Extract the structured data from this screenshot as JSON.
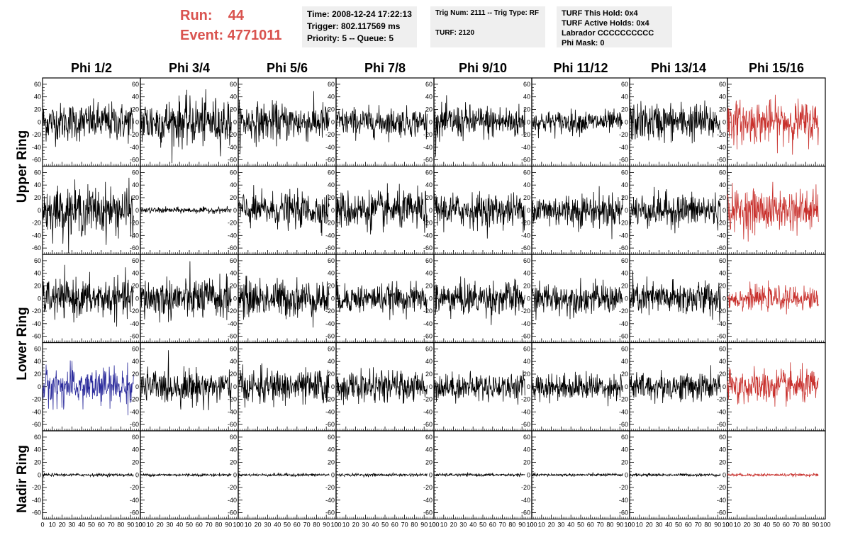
{
  "header": {
    "run_label": "Run:",
    "run_value": "44",
    "event_label": "Event:",
    "event_value": "4771011",
    "box1": {
      "time": "Time: 2008-12-24 17:22:13",
      "trigger": "Trigger: 802.117569 ms",
      "priority": "Priority: 5 -- Queue: 5"
    },
    "box2": {
      "trig_num": "Trig Num: 2111 -- Trig Type: RF",
      "turf": "TURF: 2120"
    },
    "box3": {
      "this_hold": "TURF This Hold: 0x4",
      "active_holds": "TURF Active Holds: 0x4",
      "labrador": "Labrador CCCCCCCCCC",
      "phi_mask": "Phi Mask: 0"
    }
  },
  "columns": [
    "Phi 1/2",
    "Phi 3/4",
    "Phi 5/6",
    "Phi 7/8",
    "Phi 9/10",
    "Phi 11/12",
    "Phi 13/14",
    "Phi 15/16"
  ],
  "rings": [
    {
      "label": "Upper Ring",
      "rows": [
        0,
        1
      ]
    },
    {
      "label": "Lower Ring",
      "rows": [
        2,
        3
      ]
    },
    {
      "label": "Nadir Ring",
      "rows": [
        4
      ]
    }
  ],
  "colors": {
    "trace_default": "#000000",
    "trace_red": "#c8302c",
    "trace_blue": "#2c2c9c",
    "run_text": "#d9534f",
    "info_bg": "#efefef"
  },
  "chart_data": {
    "type": "line",
    "title": "",
    "xlabel": "",
    "ylabel": "",
    "xlim": [
      0,
      100
    ],
    "ylim": [
      -70,
      70
    ],
    "yticks": [
      -60,
      -40,
      -20,
      0,
      20,
      40,
      60
    ],
    "yticklabels": [
      "-60",
      "-40",
      "-20",
      "0",
      "20",
      "40",
      "60"
    ],
    "xticks": [
      0,
      10,
      20,
      30,
      40,
      50,
      60,
      70,
      80,
      90,
      100
    ],
    "xticklabels": [
      "0",
      "10",
      "20",
      "30",
      "40",
      "50",
      "60",
      "70",
      "80",
      "90",
      "100"
    ],
    "x_range_of_samples": [
      0,
      93
    ],
    "rows": 5,
    "cols": 8,
    "panel_amplitudes": [
      [
        20,
        25,
        20,
        15,
        18,
        12,
        20,
        22
      ],
      [
        25,
        3,
        18,
        20,
        18,
        18,
        18,
        22
      ],
      [
        20,
        22,
        20,
        15,
        18,
        16,
        18,
        12
      ],
      [
        20,
        18,
        18,
        16,
        14,
        14,
        15,
        18
      ],
      [
        1.5,
        1.5,
        1.5,
        1.5,
        1.5,
        1.5,
        1.5,
        1.5
      ]
    ],
    "panel_colors": [
      [
        "default",
        "default",
        "default",
        "default",
        "default",
        "default",
        "default",
        "red"
      ],
      [
        "default",
        "default",
        "default",
        "default",
        "default",
        "default",
        "default",
        "red"
      ],
      [
        "default",
        "default",
        "default",
        "default",
        "default",
        "default",
        "default",
        "red"
      ],
      [
        "blue",
        "default",
        "default",
        "default",
        "default",
        "default",
        "default",
        "red"
      ],
      [
        "default",
        "default",
        "default",
        "default",
        "default",
        "default",
        "default",
        "red"
      ]
    ],
    "grid": false
  }
}
